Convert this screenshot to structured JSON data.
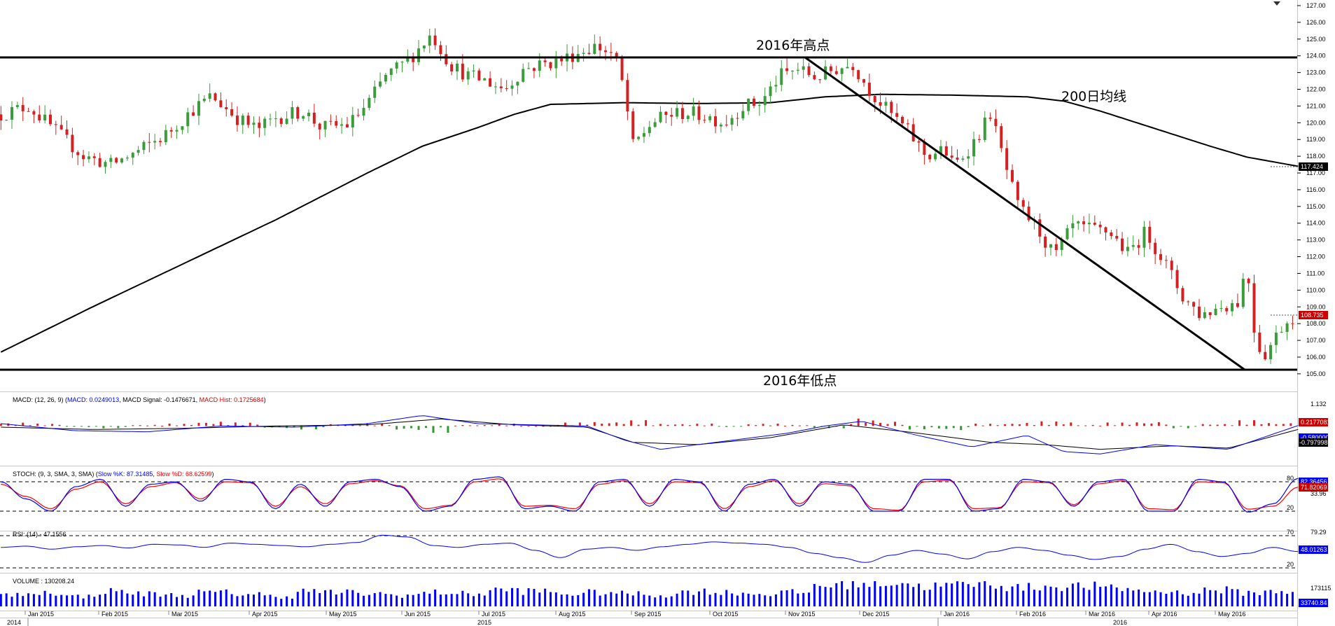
{
  "main_chart": {
    "annotations": {
      "high_label": "2016年高点",
      "low_label": "2016年低点",
      "ma_label": "200日均线"
    },
    "last_price_badge": "108.735",
    "ma_badge": "117.424",
    "menu_icon": "dropdown-triangle-icon"
  },
  "indicators": {
    "macd": {
      "title_prefix": "MACD: (12, 26, 9) (",
      "title_macd": "MACD: 0.0249013",
      "title_signal": ", MACD Signal: -0.1476671, ",
      "title_hist": "MACD Hist: 0.1725684",
      "title_suffix": ")",
      "y_top_label": "1.132",
      "badges": [
        "0.2177081",
        "-0.5800004",
        "-0.7979981"
      ]
    },
    "stoch": {
      "title_prefix": "STOCH: (9, 3, SMA, 3, SMA) (",
      "title_k": "Slow %K: 87.31485",
      "title_sep": ", ",
      "title_d": "Slow %D: 68.62599",
      "title_suffix": ")",
      "levels": [
        "80",
        "33.96",
        "20"
      ],
      "badges": [
        "82.36456",
        "71.82069"
      ]
    },
    "rsi": {
      "title": "RSI: (14) - 47.1556",
      "levels": [
        "79.29",
        "70",
        "20"
      ],
      "badge": "48.01263"
    },
    "volume": {
      "title": "VOLUME : 130208.24",
      "level": "173115",
      "badge": "33740.84"
    }
  },
  "colors": {
    "up": "#3a9c3a",
    "down": "#d42020",
    "ma": "#000000",
    "macd_line": "#0000ff",
    "signal_line": "#000000",
    "stoch_k": "#0000ff",
    "stoch_d": "#ff0000",
    "rsi": "#0000ff",
    "volume": "#0000ff",
    "badge_dark": "#000000",
    "badge_red": "#cc0000",
    "badge_blue": "#0000ff"
  },
  "chart_data": {
    "type": "candlestick",
    "y_axis": {
      "min": 104.2,
      "max": 127,
      "ticks": [
        "105.00",
        "106.00",
        "107.00",
        "108.00",
        "109.00",
        "110.00",
        "111.00",
        "112.00",
        "113.00",
        "114.00",
        "115.00",
        "116.00",
        "117.00",
        "118.00",
        "119.00",
        "120.00",
        "121.00",
        "122.00",
        "123.00",
        "124.00",
        "125.00",
        "126.00",
        "127.00"
      ]
    },
    "x_axis": {
      "months": [
        "Jan 2015",
        "Feb 2015",
        "Mar 2015",
        "Apr 2015",
        "May 2015",
        "Jun 2015",
        "Jul 2015",
        "Aug 2015",
        "Sep 2015",
        "Oct 2015",
        "Nov 2015",
        "Dec 2015",
        "Jan 2016",
        "Feb 2016",
        "Mar 2016",
        "Apr 2016",
        "May 2016"
      ],
      "years": [
        "2014",
        "2015",
        "2016"
      ]
    },
    "close_path": [
      [
        0,
        120.5
      ],
      [
        15,
        121.0
      ],
      [
        30,
        119.5
      ],
      [
        45,
        118.0
      ],
      [
        60,
        117.5
      ],
      [
        75,
        118.3
      ],
      [
        90,
        119.3
      ],
      [
        105,
        120.8
      ],
      [
        115,
        121.6
      ],
      [
        130,
        120.2
      ],
      [
        140,
        119.6
      ],
      [
        150,
        120.3
      ],
      [
        165,
        120.7
      ],
      [
        175,
        119.7
      ],
      [
        190,
        119.9
      ],
      [
        200,
        121.1
      ],
      [
        210,
        122.8
      ],
      [
        222,
        123.7
      ],
      [
        235,
        125.3
      ],
      [
        245,
        123.5
      ],
      [
        255,
        122.8
      ],
      [
        265,
        122.5
      ],
      [
        275,
        122.0
      ],
      [
        285,
        123.2
      ],
      [
        295,
        123.5
      ],
      [
        305,
        123.7
      ],
      [
        315,
        124.2
      ],
      [
        325,
        124.6
      ],
      [
        335,
        124.0
      ],
      [
        340,
        122.0
      ],
      [
        345,
        118.6
      ],
      [
        355,
        120.0
      ],
      [
        365,
        120.5
      ],
      [
        375,
        120.6
      ],
      [
        385,
        120.4
      ],
      [
        395,
        120.0
      ],
      [
        405,
        121.0
      ],
      [
        415,
        121.2
      ],
      [
        425,
        122.8
      ],
      [
        435,
        123.2
      ],
      [
        445,
        122.7
      ],
      [
        455,
        123.2
      ],
      [
        465,
        123.5
      ],
      [
        475,
        121.8
      ],
      [
        485,
        120.6
      ],
      [
        495,
        119.5
      ],
      [
        505,
        118.0
      ],
      [
        515,
        118.4
      ],
      [
        520,
        117.4
      ],
      [
        530,
        118.7
      ],
      [
        535,
        119.5
      ],
      [
        540,
        120.6
      ],
      [
        548,
        117.5
      ],
      [
        555,
        115.0
      ],
      [
        565,
        113.8
      ],
      [
        575,
        112.0
      ],
      [
        585,
        113.8
      ],
      [
        595,
        113.6
      ],
      [
        605,
        113.5
      ],
      [
        615,
        112.2
      ],
      [
        625,
        113.5
      ],
      [
        635,
        111.7
      ],
      [
        645,
        109.6
      ],
      [
        655,
        108.5
      ],
      [
        665,
        109.0
      ],
      [
        675,
        109.3
      ],
      [
        680,
        111.5
      ],
      [
        685,
        106.8
      ],
      [
        690,
        106.2
      ],
      [
        700,
        108.0
      ],
      [
        708,
        108.7
      ]
    ],
    "ma200_path": [
      [
        0,
        106.3
      ],
      [
        50,
        109.0
      ],
      [
        100,
        111.6
      ],
      [
        150,
        114.2
      ],
      [
        200,
        117.0
      ],
      [
        230,
        118.6
      ],
      [
        260,
        119.7
      ],
      [
        280,
        120.5
      ],
      [
        300,
        121.1
      ],
      [
        340,
        121.2
      ],
      [
        380,
        121.15
      ],
      [
        420,
        121.2
      ],
      [
        450,
        121.55
      ],
      [
        480,
        121.7
      ],
      [
        520,
        121.65
      ],
      [
        560,
        121.55
      ],
      [
        580,
        121.3
      ],
      [
        600,
        120.7
      ],
      [
        620,
        120.0
      ],
      [
        640,
        119.3
      ],
      [
        660,
        118.6
      ],
      [
        680,
        117.95
      ],
      [
        708,
        117.4
      ]
    ],
    "macd_path": [
      [
        0,
        0.1
      ],
      [
        40,
        -0.2
      ],
      [
        80,
        -0.25
      ],
      [
        120,
        0.0
      ],
      [
        160,
        -0.05
      ],
      [
        200,
        0.1
      ],
      [
        230,
        0.45
      ],
      [
        260,
        0.1
      ],
      [
        290,
        0.05
      ],
      [
        320,
        0.0
      ],
      [
        340,
        -0.6
      ],
      [
        360,
        -1.0
      ],
      [
        400,
        -0.6
      ],
      [
        430,
        -0.3
      ],
      [
        450,
        0.0
      ],
      [
        470,
        0.2
      ],
      [
        500,
        -0.4
      ],
      [
        530,
        -0.9
      ],
      [
        560,
        -0.4
      ],
      [
        580,
        -1.1
      ],
      [
        600,
        -1.2
      ],
      [
        630,
        -0.8
      ],
      [
        650,
        -0.9
      ],
      [
        670,
        -1.0
      ],
      [
        685,
        -0.6
      ],
      [
        708,
        0.02
      ]
    ],
    "macd_signal_path": [
      [
        0,
        -0.05
      ],
      [
        50,
        -0.15
      ],
      [
        100,
        -0.1
      ],
      [
        150,
        0.0
      ],
      [
        200,
        0.05
      ],
      [
        240,
        0.3
      ],
      [
        280,
        0.05
      ],
      [
        320,
        -0.05
      ],
      [
        345,
        -0.7
      ],
      [
        380,
        -0.8
      ],
      [
        420,
        -0.5
      ],
      [
        460,
        0.05
      ],
      [
        500,
        -0.3
      ],
      [
        540,
        -0.7
      ],
      [
        570,
        -0.8
      ],
      [
        600,
        -1.0
      ],
      [
        640,
        -0.85
      ],
      [
        670,
        -0.95
      ],
      [
        708,
        -0.15
      ]
    ],
    "macd_hist_values": [
      0.15,
      0.1,
      -0.05,
      -0.1,
      0.05,
      0.1,
      0.2,
      0.15,
      -0.1,
      -0.15,
      0.1,
      0.1,
      -0.2,
      -0.3,
      0.05,
      0.1,
      0.0,
      0.15,
      0.2,
      0.25,
      0.1,
      0.1,
      -0.05,
      0.1,
      0.05,
      -0.1,
      0.35,
      0.2,
      -0.15,
      -0.2,
      0.1,
      0.15,
      0.2,
      0.05,
      0.15,
      0.2,
      -0.1,
      0.1,
      0.25,
      0.15
    ],
    "stoch_k_values": [
      80,
      45,
      20,
      70,
      85,
      30,
      75,
      80,
      40,
      85,
      80,
      25,
      75,
      30,
      80,
      85,
      70,
      20,
      30,
      85,
      90,
      25,
      30,
      20,
      80,
      85,
      30,
      85,
      80,
      20,
      75,
      85,
      30,
      80,
      75,
      20,
      20,
      85,
      85,
      20,
      25,
      85,
      80,
      30,
      80,
      85,
      20,
      20,
      85,
      80,
      18,
      35,
      87
    ],
    "stoch_d_values": [
      75,
      50,
      25,
      65,
      80,
      35,
      70,
      78,
      45,
      80,
      78,
      30,
      70,
      35,
      76,
      82,
      72,
      25,
      32,
      80,
      86,
      30,
      32,
      25,
      75,
      82,
      35,
      80,
      78,
      25,
      70,
      82,
      35,
      76,
      72,
      25,
      22,
      80,
      83,
      25,
      27,
      80,
      78,
      33,
      76,
      82,
      25,
      23,
      80,
      78,
      24,
      30,
      69
    ],
    "rsi_values": [
      55,
      57,
      52,
      56,
      58,
      54,
      60,
      59,
      55,
      62,
      60,
      58,
      56,
      60,
      63,
      75,
      72,
      58,
      55,
      60,
      62,
      50,
      38,
      52,
      55,
      50,
      56,
      60,
      64,
      62,
      60,
      55,
      45,
      38,
      30,
      42,
      50,
      44,
      36,
      48,
      55,
      50,
      42,
      35,
      40,
      52,
      60,
      48,
      40,
      45,
      55,
      48
    ],
    "volume_values": [
      0.45,
      0.55,
      0.4,
      0.6,
      0.5,
      0.45,
      0.55,
      0.5,
      0.4,
      0.6,
      0.55,
      0.5,
      0.45,
      0.55,
      0.5,
      0.65,
      0.6,
      0.5,
      0.55,
      0.5,
      0.45,
      0.6,
      0.55,
      0.5,
      0.55,
      0.85,
      0.9,
      0.95,
      0.8,
      0.85,
      0.9,
      0.75,
      0.8,
      0.8,
      0.7,
      0.6,
      0.55,
      0.65,
      0.55,
      0.6
    ]
  }
}
